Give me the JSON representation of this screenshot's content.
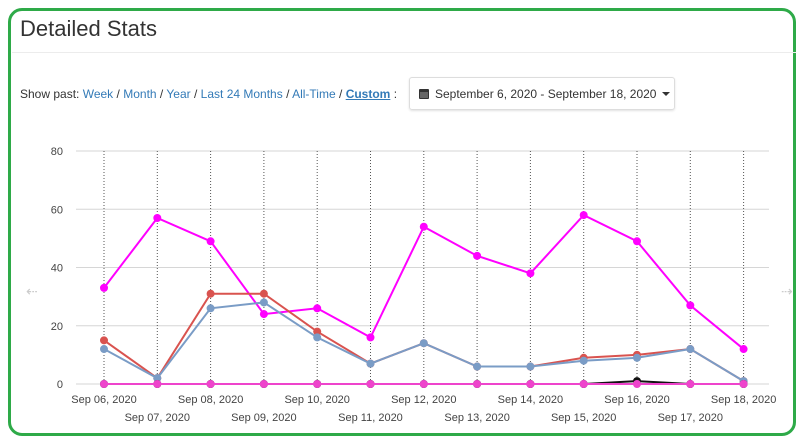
{
  "header": {
    "title": "Detailed Stats"
  },
  "filter": {
    "label": "Show past:",
    "options": [
      "Week",
      "Month",
      "Year",
      "Last 24 Months",
      "All-Time",
      "Custom"
    ],
    "active": "Custom",
    "suffix": ":"
  },
  "date_range": {
    "value": "September 6, 2020 - September 18, 2020",
    "icon": "calendar-icon"
  },
  "nav": {
    "prev_icon": "left-arrow-icon",
    "next_icon": "right-arrow-icon"
  },
  "chart_data": {
    "type": "line",
    "categories": [
      "Sep 06, 2020",
      "Sep 07, 2020",
      "Sep 08, 2020",
      "Sep 09, 2020",
      "Sep 10, 2020",
      "Sep 11, 2020",
      "Sep 12, 2020",
      "Sep 13, 2020",
      "Sep 14, 2020",
      "Sep 15, 2020",
      "Sep 16, 2020",
      "Sep 17, 2020",
      "Sep 18, 2020"
    ],
    "ylim": [
      0,
      80
    ],
    "yticks": [
      0,
      20,
      40,
      60,
      80
    ],
    "grid": true,
    "series": [
      {
        "color": "#ff00ff",
        "values": [
          33,
          57,
          49,
          24,
          26,
          16,
          54,
          44,
          38,
          58,
          49,
          27,
          12
        ]
      },
      {
        "color": "#d9534f",
        "values": [
          15,
          2,
          31,
          31,
          18,
          7,
          14,
          6,
          6,
          9,
          10,
          12,
          1
        ]
      },
      {
        "color": "#7a9cc6",
        "values": [
          12,
          2,
          26,
          28,
          16,
          7,
          14,
          6,
          6,
          8,
          9,
          12,
          1
        ]
      },
      {
        "color": "#111111",
        "values": [
          0,
          0,
          0,
          0,
          0,
          0,
          0,
          0,
          0,
          0,
          1,
          0,
          0
        ]
      },
      {
        "color": "#ee44cc",
        "values": [
          0,
          0,
          0,
          0,
          0,
          0,
          0,
          0,
          0,
          0,
          0,
          0,
          0
        ]
      }
    ]
  }
}
